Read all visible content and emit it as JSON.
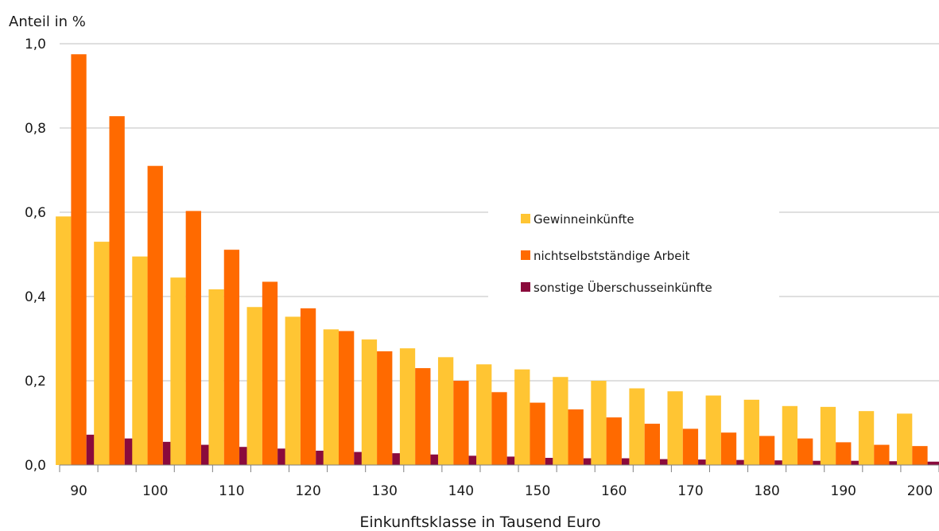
{
  "chart_data": {
    "type": "bar",
    "ylabel": "Anteil in %",
    "xlabel": "Einkunftsklasse in Tausend Euro",
    "ylim": [
      0,
      1.0
    ],
    "y_ticks": [
      "0,0",
      "0,2",
      "0,4",
      "0,6",
      "0,8",
      "1,0"
    ],
    "x_tick_labels": [
      "90",
      "100",
      "110",
      "120",
      "130",
      "140",
      "150",
      "160",
      "170",
      "180",
      "190",
      "200"
    ],
    "categories": [
      "90",
      "95",
      "100",
      "105",
      "110",
      "115",
      "120",
      "125",
      "130",
      "135",
      "140",
      "145",
      "150",
      "155",
      "160",
      "165",
      "170",
      "175",
      "180",
      "185",
      "190",
      "195",
      "200"
    ],
    "grid": "horizontal",
    "legend_position": "center-right",
    "series": [
      {
        "name": "Gewinneinkünfte",
        "color": "#FFC533",
        "values": [
          0.59,
          0.53,
          0.495,
          0.445,
          0.417,
          0.375,
          0.352,
          0.322,
          0.298,
          0.277,
          0.256,
          0.239,
          0.227,
          0.209,
          0.2,
          0.182,
          0.175,
          0.165,
          0.155,
          0.14,
          0.138,
          0.128,
          0.122
        ]
      },
      {
        "name": "nichtselbstständige Arbeit",
        "color": "#FF6A00",
        "values": [
          0.975,
          0.828,
          0.71,
          0.603,
          0.511,
          0.435,
          0.372,
          0.318,
          0.27,
          0.23,
          0.2,
          0.173,
          0.148,
          0.132,
          0.113,
          0.098,
          0.086,
          0.077,
          0.069,
          0.063,
          0.054,
          0.048,
          0.045
        ]
      },
      {
        "name": "sonstige Überschusseinkünfte",
        "color": "#8A0A3C",
        "values": [
          0.072,
          0.063,
          0.055,
          0.048,
          0.043,
          0.039,
          0.034,
          0.031,
          0.028,
          0.025,
          0.022,
          0.02,
          0.017,
          0.016,
          0.016,
          0.014,
          0.013,
          0.012,
          0.011,
          0.01,
          0.01,
          0.009,
          0.008
        ]
      }
    ]
  }
}
